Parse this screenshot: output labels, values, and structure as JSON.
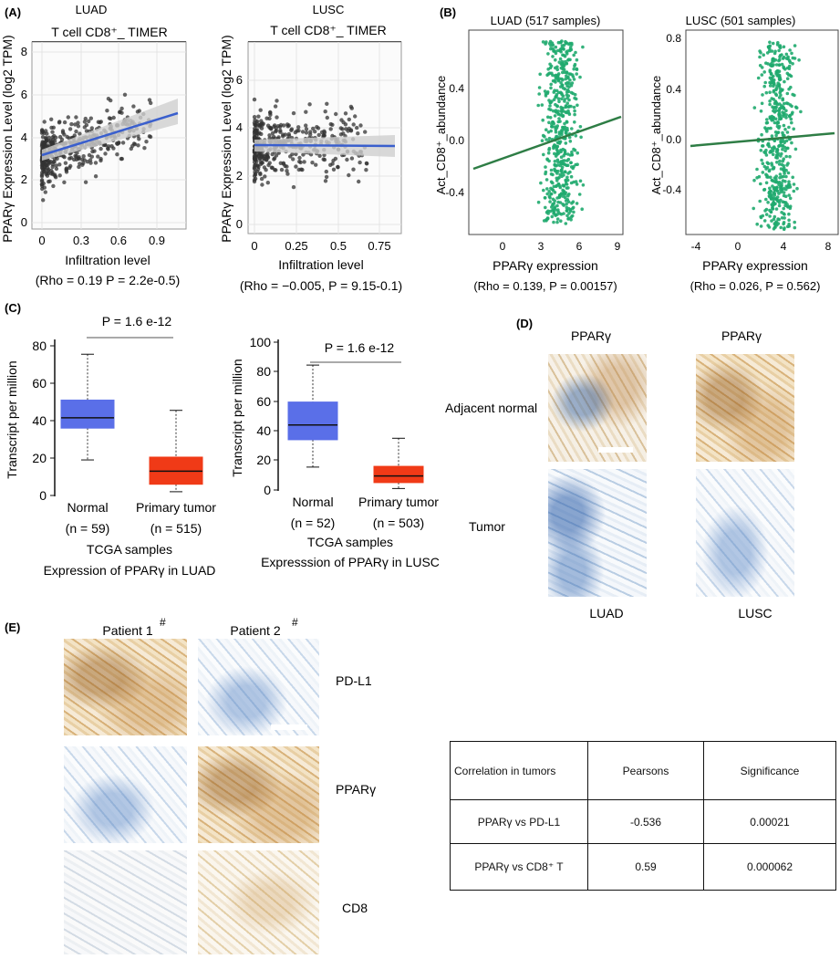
{
  "panels": {
    "A": {
      "label": "(A)",
      "left": {
        "cancer": "LUAD",
        "title": "T cell CD8⁺_ TIMER",
        "ylabel": "PPARγ Expression Level (log2 TPM)",
        "xlabel": "Infiltration level",
        "stats": "(Rho = 0.19  P = 2.2e-0.5)",
        "xticks": [
          "0",
          "0.3",
          "0.6",
          "0.9"
        ],
        "yticks": [
          "0",
          "2",
          "4",
          "6",
          "8"
        ]
      },
      "right": {
        "cancer": "LUSC",
        "title": "T cell CD8⁺_ TIMER",
        "ylabel": "PPARγ Expression Level (log2 TPM)",
        "xlabel": "Infiltration level",
        "stats": "(Rho = −0.005, P = 9.15-0.1)",
        "xticks": [
          "0",
          "0.25",
          "0.5",
          "0.75"
        ],
        "yticks": [
          "0",
          "2",
          "4",
          "6"
        ]
      }
    },
    "B": {
      "label": "(B)",
      "left": {
        "title": "LUAD (517 samples)",
        "ylabel": "Act_CD8⁺_abundance",
        "xlabel": "PPARγ expression",
        "stats": "(Rho = 0.139, P = 0.00157)",
        "xticks": [
          "0",
          "3",
          "6",
          "9"
        ],
        "yticks": [
          "0.4",
          "0.0",
          "-0.4"
        ]
      },
      "right": {
        "title": "LUSC (501 samples)",
        "ylabel": "Act_CD8⁺_abundance",
        "xlabel": "PPARγ expression",
        "stats": "(Rho = 0.026, P = 0.562)",
        "xticks": [
          "-4",
          "0",
          "4",
          "8"
        ],
        "yticks": [
          "0.8",
          "0.4",
          "0.0",
          "-0.4"
        ]
      }
    },
    "C": {
      "label": "(C)",
      "left": {
        "pvalue": "P = 1.6 e-12",
        "ylabel": "Transcript per million",
        "yticks": [
          "0",
          "20",
          "40",
          "60",
          "80"
        ],
        "groups": [
          "Normal",
          "Primary tumor"
        ],
        "ns": [
          "(n = 59)",
          "(n = 515)"
        ],
        "caption1": "TCGA samples",
        "caption2": "Expression of PPARγ in LUAD"
      },
      "right": {
        "pvalue": "P = 1.6 e-12",
        "ylabel": "Transcript per million",
        "yticks": [
          "0",
          "20",
          "40",
          "60",
          "80",
          "100"
        ],
        "groups": [
          "Normal",
          "Primary tumor"
        ],
        "ns": [
          "(n = 52)",
          "(n = 503)"
        ],
        "caption1": "TCGA samples",
        "caption2": "Expresssion of PPARγ in LUSC"
      }
    },
    "D": {
      "label": "(D)",
      "col1": "PPARγ",
      "col2": "PPARγ",
      "row1": "Adjacent normal",
      "row2": "Tumor",
      "foot1": "LUAD",
      "foot2": "LUSC"
    },
    "E": {
      "label": "(E)",
      "patient1": "Patient 1",
      "patient2": "Patient  2",
      "mark": "#",
      "row1": "PD-L1",
      "row2": "PPARγ",
      "row3": "CD8"
    }
  },
  "table": {
    "headers": [
      "Correlation in tumors",
      "Pearsons",
      "Significance"
    ],
    "rows": [
      [
        "PPARγ vs PD-L1",
        "-0.536",
        "0.00021"
      ],
      [
        "PPARγ vs  CD8⁺ T",
        "0.59",
        "0.000062"
      ]
    ]
  },
  "chart_data": [
    {
      "type": "scatter",
      "title": "LUAD T cell CD8+_ TIMER",
      "xlabel": "Infiltration level",
      "ylabel": "PPARγ Expression Level (log2 TPM)",
      "xlim": [
        -0.05,
        1.1
      ],
      "ylim": [
        0,
        8
      ],
      "fit": {
        "x": [
          0,
          1.05
        ],
        "y": [
          3.25,
          5.15
        ]
      },
      "point_color": "#333333",
      "fit_color": "#3a5fcd",
      "sample_points": {
        "x": [
          0.05,
          0.1,
          0.12,
          0.18,
          0.2,
          0.25,
          0.3,
          0.35,
          0.42,
          0.5,
          0.6,
          0.75,
          0.9,
          1.0
        ],
        "y": [
          3.8,
          4.5,
          2.1,
          4.2,
          3.5,
          5.2,
          3.1,
          4.8,
          3.9,
          4.4,
          4.7,
          3.6,
          3.2,
          3.5
        ]
      }
    },
    {
      "type": "scatter",
      "title": "LUSC T cell CD8+_ TIMER",
      "xlabel": "Infiltration level",
      "ylabel": "PPARγ Expression Level (log2 TPM)",
      "xlim": [
        -0.03,
        0.9
      ],
      "ylim": [
        -0.2,
        7.5
      ],
      "fit": {
        "x": [
          0,
          0.88
        ],
        "y": [
          3.3,
          3.28
        ]
      },
      "point_color": "#333333",
      "fit_color": "#3a5fcd",
      "sample_points": {
        "x": [
          0.02,
          0.05,
          0.1,
          0.15,
          0.2,
          0.25,
          0.3,
          0.4,
          0.5,
          0.6,
          0.7,
          0.85
        ],
        "y": [
          3.5,
          2.8,
          4.2,
          3.9,
          2.2,
          3.6,
          4.4,
          3.1,
          2.5,
          3.8,
          3.4,
          3.7
        ]
      }
    },
    {
      "type": "scatter",
      "title": "LUAD (517 samples)",
      "xlabel": "PPARγ expression",
      "ylabel": "Act_CD8+_abundance",
      "xlim": [
        -2,
        9
      ],
      "ylim": [
        -0.75,
        0.75
      ],
      "fit": {
        "x": [
          -1.5,
          8.8
        ],
        "y": [
          -0.22,
          0.18
        ]
      },
      "point_color": "#1faa6e",
      "fit_color": "#2e7d45"
    },
    {
      "type": "scatter",
      "title": "LUSC (501 samples)",
      "xlabel": "PPARγ expression",
      "ylabel": "Act_CD8+_abundance",
      "xlim": [
        -4,
        8
      ],
      "ylim": [
        -0.75,
        0.8
      ],
      "fit": {
        "x": [
          -3.5,
          7.8
        ],
        "y": [
          -0.06,
          0.03
        ]
      },
      "point_color": "#1faa6e",
      "fit_color": "#2e7d45"
    },
    {
      "type": "box",
      "title": "Expression of PPARγ in LUAD",
      "categories": [
        "Normal",
        "Primary tumor"
      ],
      "ylabel": "Transcript per million",
      "ylim": [
        0,
        85
      ],
      "boxes": [
        {
          "min": 19,
          "q1": 36,
          "median": 41.5,
          "q3": 51,
          "max": 75.5,
          "color": "#5a6fe8"
        },
        {
          "min": 2,
          "q1": 6,
          "median": 13,
          "q3": 20.5,
          "max": 45.5,
          "color": "#f03a17"
        }
      ]
    },
    {
      "type": "box",
      "title": "Expresssion of PPARγ in LUSC",
      "categories": [
        "Normal",
        "Primary tumor"
      ],
      "ylabel": "Transcript per million",
      "ylim": [
        0,
        100
      ],
      "boxes": [
        {
          "min": 15.5,
          "q1": 34,
          "median": 44,
          "q3": 59.5,
          "max": 84.5,
          "color": "#5a6fe8"
        },
        {
          "min": 1,
          "q1": 5,
          "median": 9.5,
          "q3": 16,
          "max": 35,
          "color": "#f03a17"
        }
      ]
    }
  ]
}
